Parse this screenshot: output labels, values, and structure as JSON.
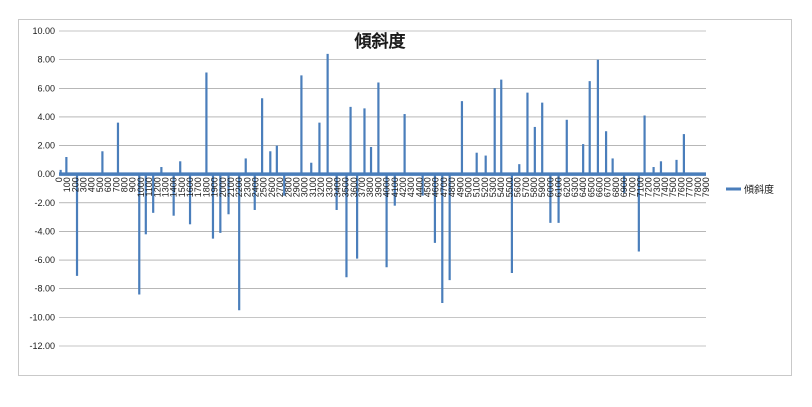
{
  "chart_data": {
    "type": "line",
    "title": "傾斜度",
    "xlabel": "",
    "ylabel": "",
    "ylim": [
      -12,
      10
    ],
    "ystep": 2,
    "xlim": [
      0,
      7900
    ],
    "xstep": 100,
    "grid": "horizontal",
    "legend_position": "right",
    "series_color": "#4a7ebb",
    "series": [
      {
        "name": "傾斜度",
        "spikes": [
          {
            "x": 20,
            "y": 0.3
          },
          {
            "x": 90,
            "y": 1.2
          },
          {
            "x": 220,
            "y": -7.1
          },
          {
            "x": 530,
            "y": 1.6
          },
          {
            "x": 720,
            "y": 3.6
          },
          {
            "x": 980,
            "y": -8.4
          },
          {
            "x": 1060,
            "y": -4.2
          },
          {
            "x": 1150,
            "y": -2.7
          },
          {
            "x": 1250,
            "y": 0.5
          },
          {
            "x": 1400,
            "y": -2.9
          },
          {
            "x": 1480,
            "y": 0.9
          },
          {
            "x": 1600,
            "y": -3.5
          },
          {
            "x": 1800,
            "y": 7.1
          },
          {
            "x": 1880,
            "y": -4.5
          },
          {
            "x": 1970,
            "y": -4.1
          },
          {
            "x": 2070,
            "y": -2.8
          },
          {
            "x": 2200,
            "y": -9.5
          },
          {
            "x": 2280,
            "y": 1.1
          },
          {
            "x": 2390,
            "y": -2.5
          },
          {
            "x": 2480,
            "y": 5.3
          },
          {
            "x": 2580,
            "y": 1.6
          },
          {
            "x": 2660,
            "y": 2.0
          },
          {
            "x": 2750,
            "y": -1.5
          },
          {
            "x": 2960,
            "y": 6.9
          },
          {
            "x": 3080,
            "y": 0.8
          },
          {
            "x": 3180,
            "y": 3.6
          },
          {
            "x": 3280,
            "y": 8.4
          },
          {
            "x": 3390,
            "y": -2.5
          },
          {
            "x": 3510,
            "y": -7.2
          },
          {
            "x": 3560,
            "y": 4.7
          },
          {
            "x": 3640,
            "y": -5.9
          },
          {
            "x": 3730,
            "y": 4.6
          },
          {
            "x": 3810,
            "y": 1.9
          },
          {
            "x": 3900,
            "y": 6.4
          },
          {
            "x": 4000,
            "y": -6.5
          },
          {
            "x": 4100,
            "y": -2.2
          },
          {
            "x": 4220,
            "y": 4.2
          },
          {
            "x": 4440,
            "y": -1.5
          },
          {
            "x": 4590,
            "y": -4.8
          },
          {
            "x": 4680,
            "y": -9.0
          },
          {
            "x": 4770,
            "y": -7.4
          },
          {
            "x": 4920,
            "y": 5.1
          },
          {
            "x": 5100,
            "y": 1.5
          },
          {
            "x": 5210,
            "y": 1.3
          },
          {
            "x": 5320,
            "y": 6.0
          },
          {
            "x": 5400,
            "y": 6.6
          },
          {
            "x": 5530,
            "y": -6.9
          },
          {
            "x": 5620,
            "y": 0.7
          },
          {
            "x": 5720,
            "y": 5.7
          },
          {
            "x": 5810,
            "y": 3.3
          },
          {
            "x": 5900,
            "y": 5.0
          },
          {
            "x": 6000,
            "y": -3.4
          },
          {
            "x": 6100,
            "y": -3.4
          },
          {
            "x": 6200,
            "y": 3.8
          },
          {
            "x": 6400,
            "y": 2.1
          },
          {
            "x": 6480,
            "y": 6.5
          },
          {
            "x": 6580,
            "y": 8.0
          },
          {
            "x": 6680,
            "y": 3.0
          },
          {
            "x": 6760,
            "y": 1.1
          },
          {
            "x": 6900,
            "y": -1.3
          },
          {
            "x": 7080,
            "y": -5.4
          },
          {
            "x": 7150,
            "y": 4.1
          },
          {
            "x": 7260,
            "y": 0.5
          },
          {
            "x": 7350,
            "y": 0.9
          },
          {
            "x": 7540,
            "y": 1.0
          },
          {
            "x": 7630,
            "y": 2.8
          }
        ]
      }
    ]
  }
}
